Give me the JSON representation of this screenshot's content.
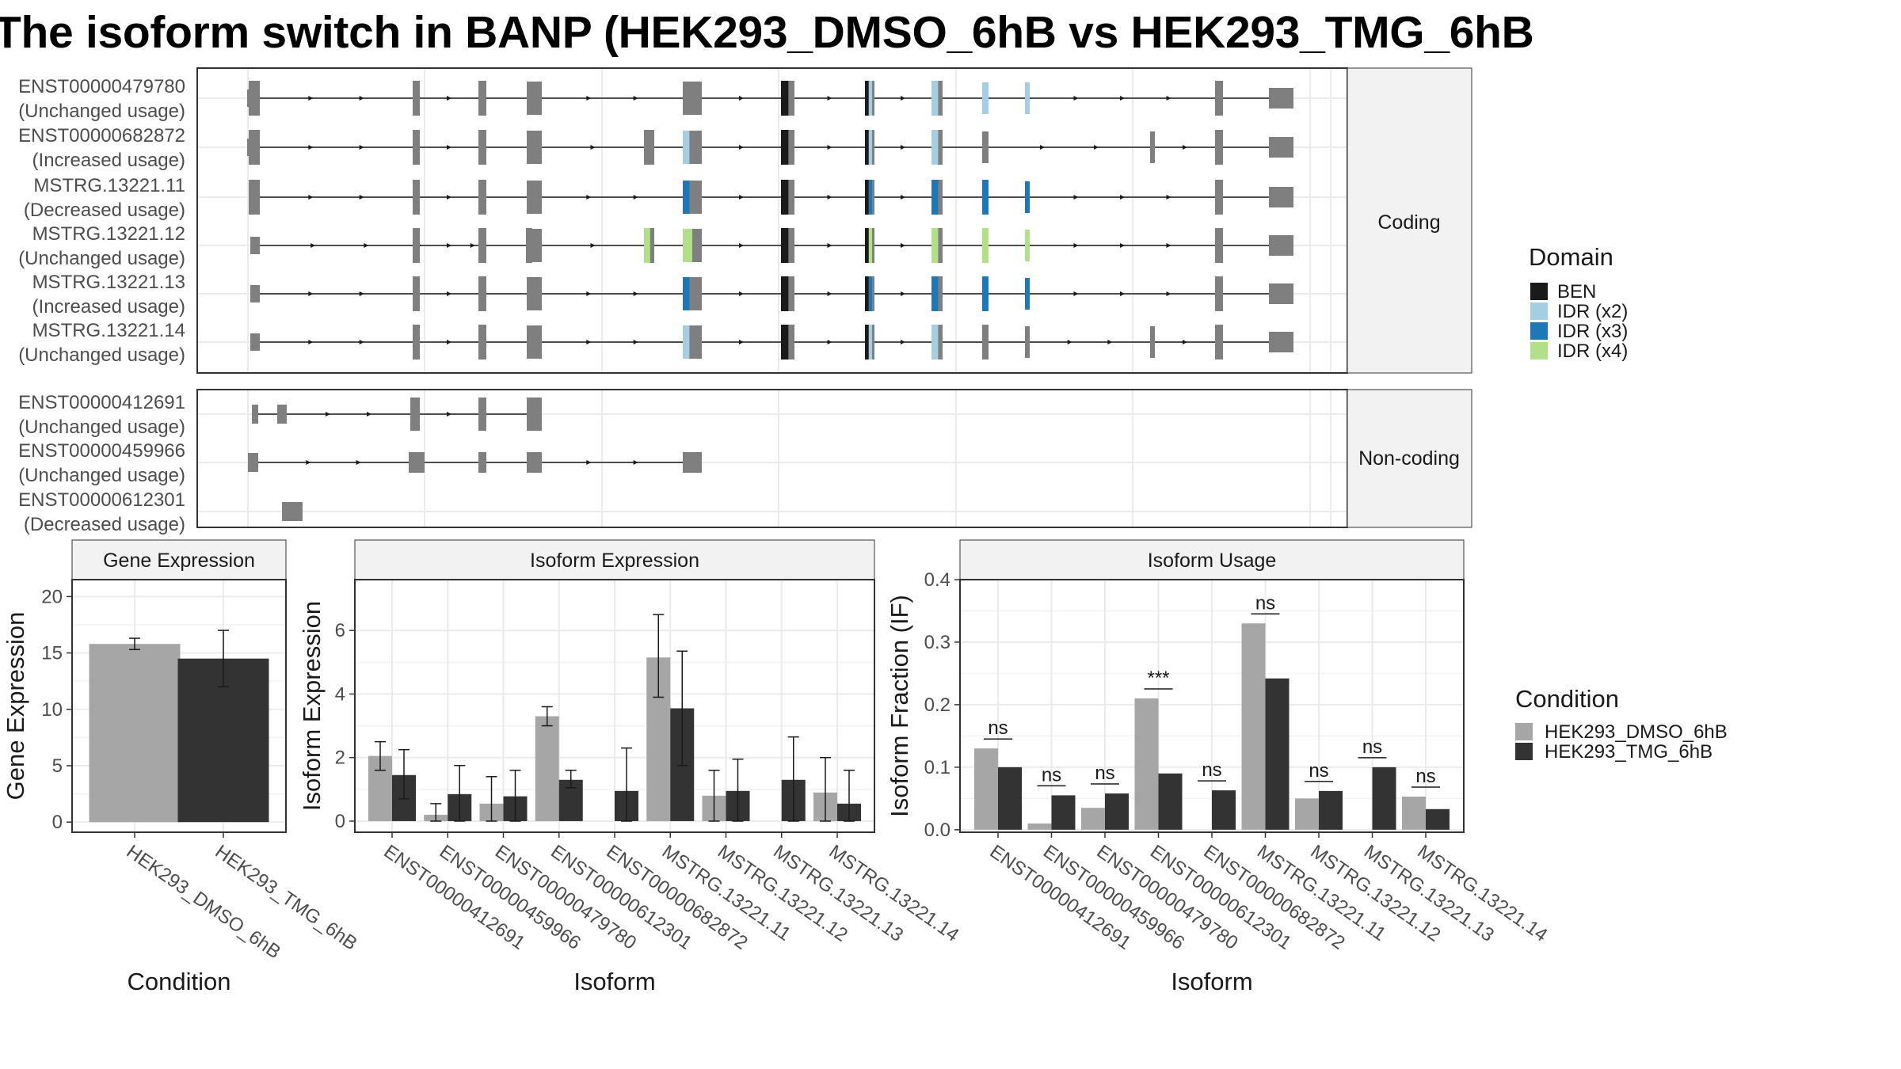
{
  "title": "The isoform switch in BANP (HEK293_DMSO_6hB vs HEK293_TMG_6hB",
  "colors": {
    "ben": "#1a1a1a",
    "idr_x2": "#a6cee3",
    "idr_x3": "#1f78b4",
    "idr_x4": "#b2df8a",
    "exon": "#7f7f7f",
    "dmso": "#a6a6a6",
    "tmg": "#333333"
  },
  "transcripts": {
    "coding_facet": "Coding",
    "noncoding_facet": "Non-coding",
    "coding": [
      {
        "id": "ENST00000479780",
        "usage": "(Unchanged usage)"
      },
      {
        "id": "ENST00000682872",
        "usage": "(Increased usage)"
      },
      {
        "id": "MSTRG.13221.11",
        "usage": "(Decreased usage)"
      },
      {
        "id": "MSTRG.13221.12",
        "usage": "(Unchanged usage)"
      },
      {
        "id": "MSTRG.13221.13",
        "usage": "(Increased usage)"
      },
      {
        "id": "MSTRG.13221.14",
        "usage": "(Unchanged usage)"
      }
    ],
    "noncoding": [
      {
        "id": "ENST00000412691",
        "usage": "(Unchanged usage)"
      },
      {
        "id": "ENST00000459966",
        "usage": "(Unchanged usage)"
      },
      {
        "id": "ENST00000612301",
        "usage": "(Decreased usage)"
      }
    ]
  },
  "domain_legend": {
    "title": "Domain",
    "items": [
      {
        "label": "BEN",
        "color": "#1a1a1a"
      },
      {
        "label": "IDR (x2)",
        "color": "#a6cee3"
      },
      {
        "label": "IDR (x3)",
        "color": "#1f78b4"
      },
      {
        "label": "IDR (x4)",
        "color": "#b2df8a"
      }
    ]
  },
  "condition_legend": {
    "title": "Condition",
    "items": [
      {
        "label": "HEK293_DMSO_6hB",
        "color": "#a6a6a6"
      },
      {
        "label": "HEK293_TMG_6hB",
        "color": "#333333"
      }
    ]
  },
  "chart_data": [
    {
      "type": "bar",
      "title": "Gene Expression",
      "xlabel": "Condition",
      "ylabel": "Gene Expression",
      "categories": [
        "HEK293_DMSO_6hB",
        "HEK293_TMG_6hB"
      ],
      "values": [
        15.8,
        14.5
      ],
      "error_low": [
        15.3,
        12.0
      ],
      "error_high": [
        16.3,
        17.0
      ],
      "ylim": [
        -0.9,
        21.5
      ],
      "yticks": [
        0,
        5,
        10,
        15,
        20
      ]
    },
    {
      "type": "bar",
      "title": "Isoform Expression",
      "xlabel": "Isoform",
      "ylabel": "Isoform Expression",
      "categories": [
        "ENST00000412691",
        "ENST00000459966",
        "ENST00000479780",
        "ENST00000612301",
        "ENST00000682872",
        "MSTRG.13221.11",
        "MSTRG.13221.12",
        "MSTRG.13221.13",
        "MSTRG.13221.14"
      ],
      "series": [
        {
          "name": "HEK293_DMSO_6hB",
          "values": [
            2.05,
            0.2,
            0.55,
            3.3,
            0.0,
            5.15,
            0.8,
            0.0,
            0.9
          ],
          "error_low": [
            1.6,
            0.0,
            0.0,
            3.0,
            0.0,
            3.9,
            0.0,
            0.0,
            0.0
          ],
          "error_high": [
            2.5,
            0.55,
            1.4,
            3.6,
            0.0,
            6.5,
            1.6,
            0.0,
            2.0
          ]
        },
        {
          "name": "HEK293_TMG_6hB",
          "values": [
            1.45,
            0.85,
            0.78,
            1.3,
            0.95,
            3.55,
            0.95,
            1.3,
            0.55
          ],
          "error_low": [
            0.7,
            0.0,
            0.0,
            1.05,
            0.0,
            1.75,
            0.0,
            0.0,
            0.0
          ],
          "error_high": [
            2.25,
            1.75,
            1.6,
            1.6,
            2.3,
            5.35,
            1.95,
            2.65,
            1.6
          ]
        }
      ],
      "ylim": [
        -0.35,
        7.6
      ],
      "yticks": [
        0,
        2,
        4,
        6
      ]
    },
    {
      "type": "bar",
      "title": "Isoform Usage",
      "xlabel": "Isoform",
      "ylabel": "Isoform Fraction (IF)",
      "categories": [
        "ENST00000412691",
        "ENST00000459966",
        "ENST00000479780",
        "ENST00000612301",
        "ENST00000682872",
        "MSTRG.13221.11",
        "MSTRG.13221.12",
        "MSTRG.13221.13",
        "MSTRG.13221.14"
      ],
      "series": [
        {
          "name": "HEK293_DMSO_6hB",
          "values": [
            0.13,
            0.01,
            0.035,
            0.21,
            0.0,
            0.33,
            0.05,
            0.0,
            0.053
          ]
        },
        {
          "name": "HEK293_TMG_6hB",
          "values": [
            0.1,
            0.055,
            0.058,
            0.09,
            0.063,
            0.242,
            0.062,
            0.1,
            0.033
          ]
        }
      ],
      "significance": [
        "ns",
        "ns",
        "ns",
        "***",
        "ns",
        "ns",
        "ns",
        "ns",
        "ns"
      ],
      "ylim": [
        -0.004,
        0.4
      ],
      "yticks": [
        0.0,
        0.1,
        0.2,
        0.3,
        0.4
      ]
    }
  ]
}
